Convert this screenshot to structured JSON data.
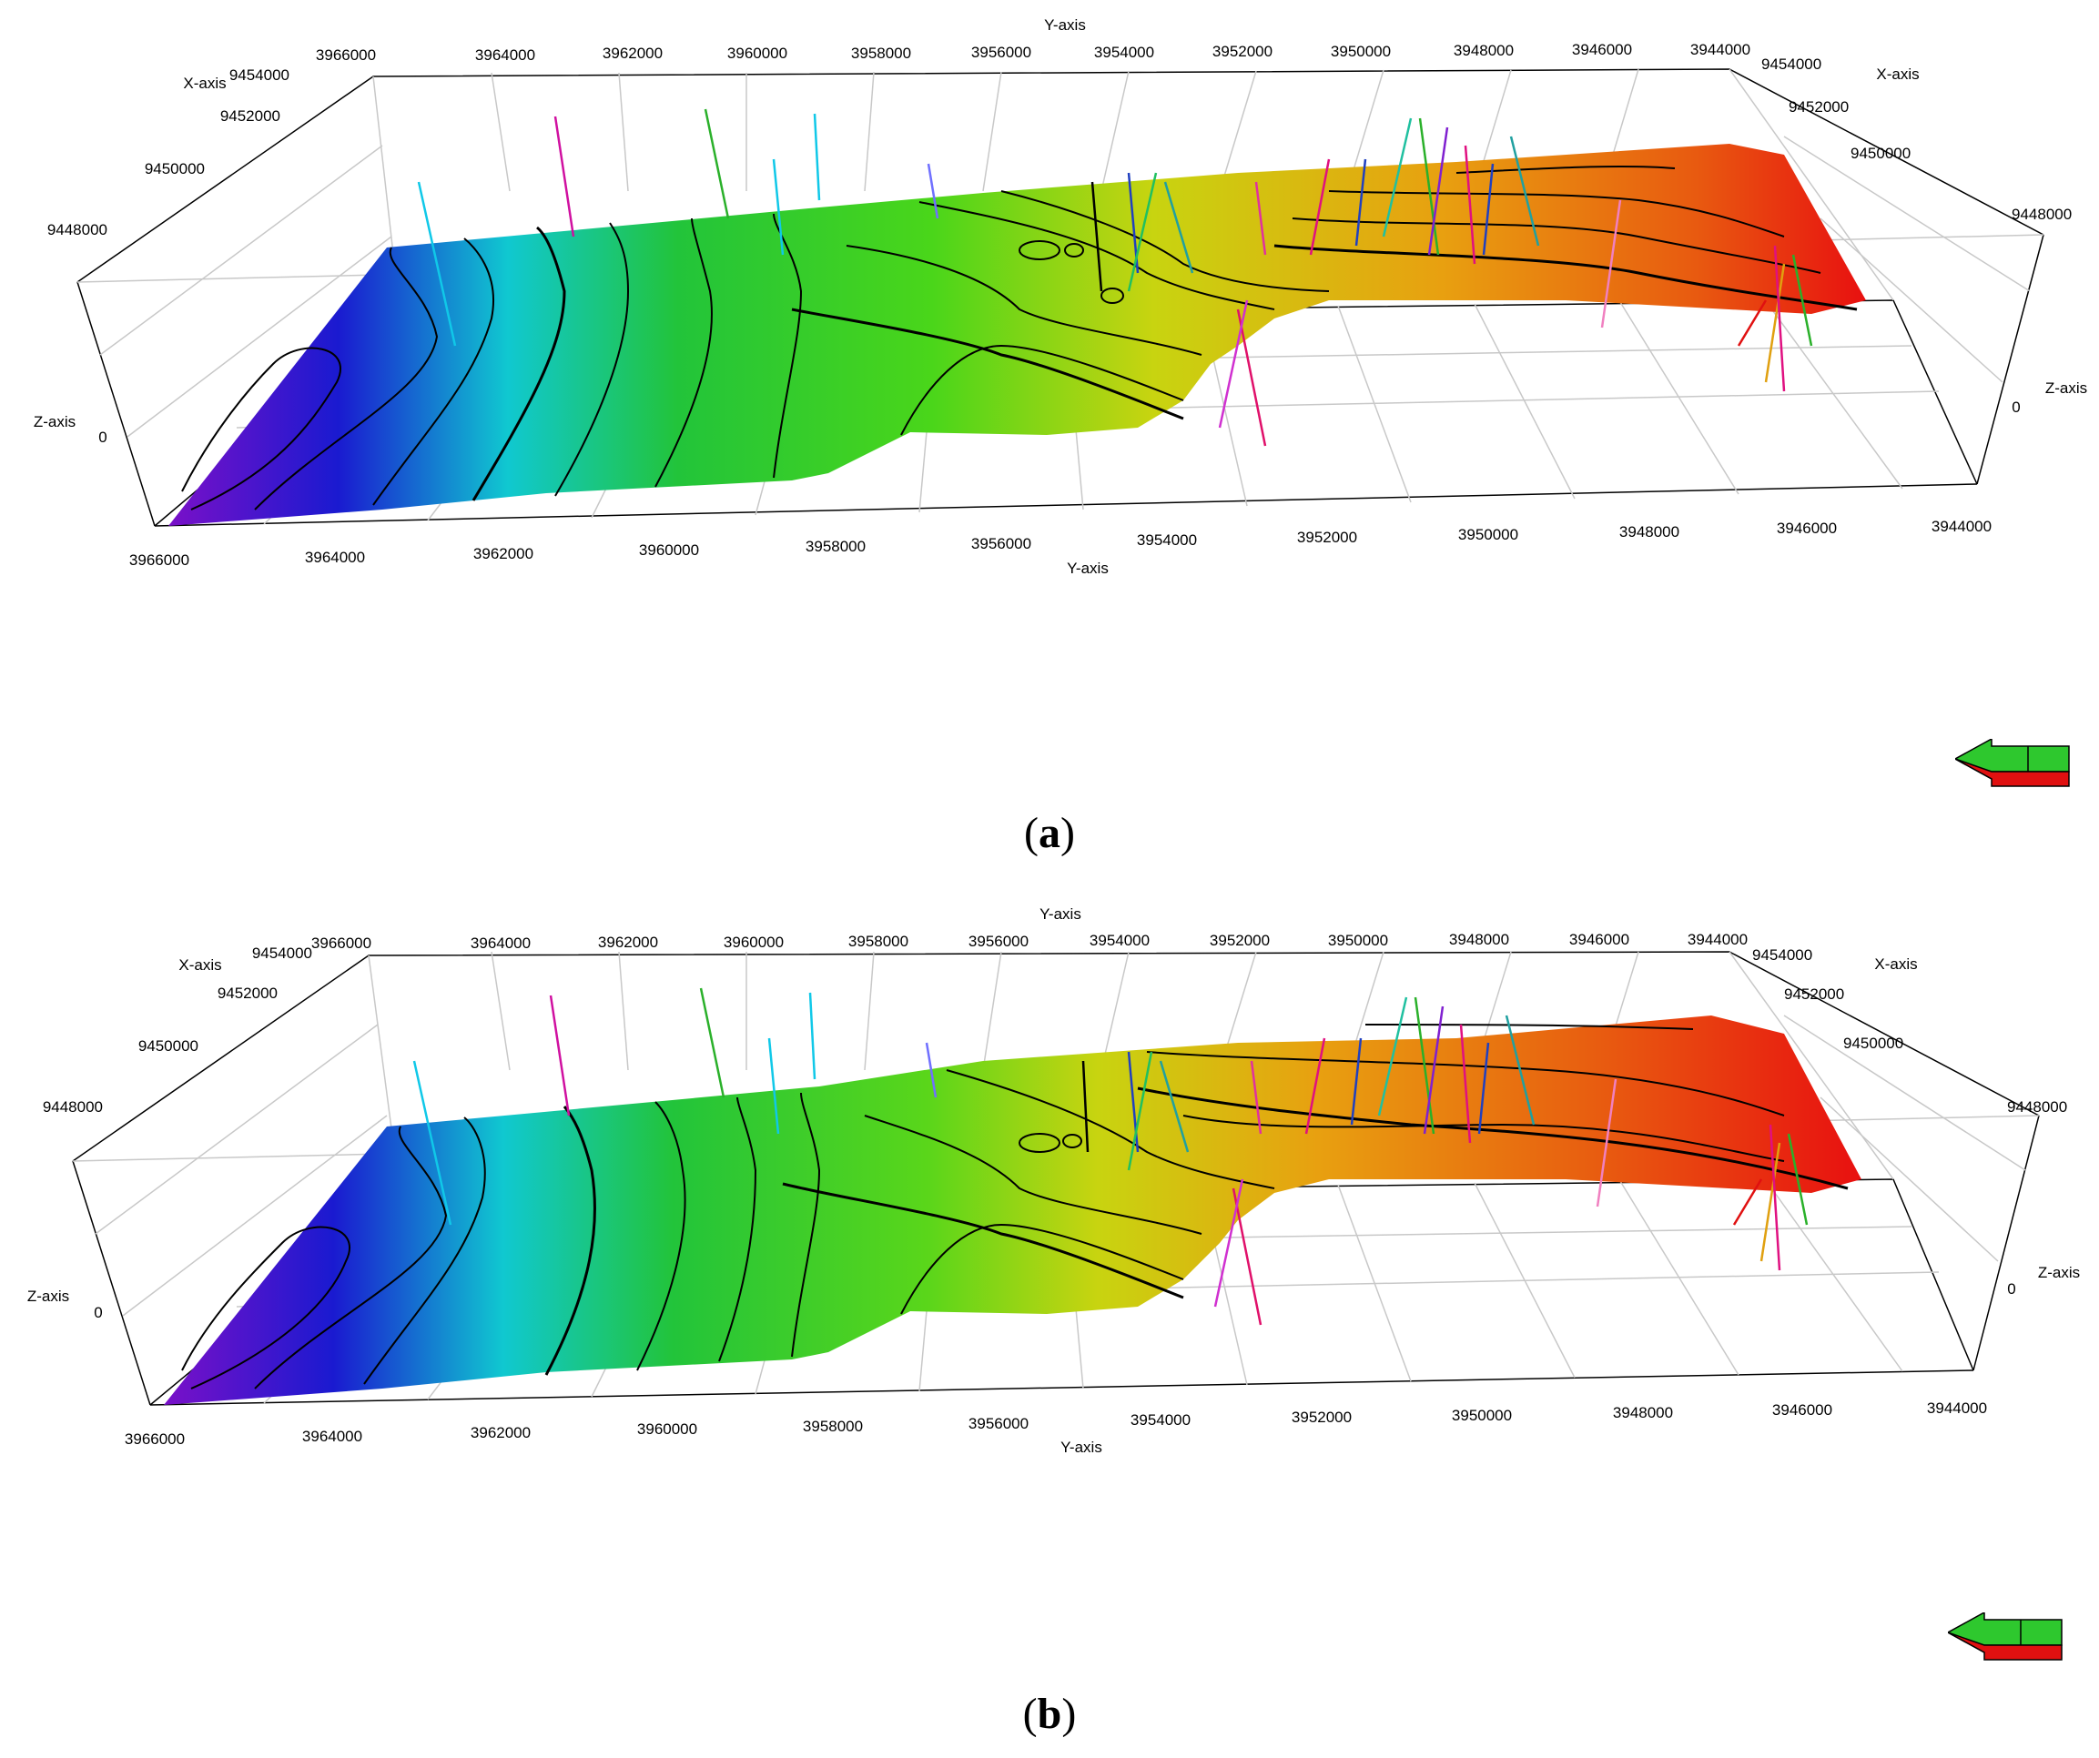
{
  "panels": [
    {
      "id": "a",
      "caption_letter": "a",
      "y_axis_label": "Y-axis",
      "x_axis_label": "X-axis",
      "z_axis_label": "Z-axis",
      "top_y_ticks": [
        "3966000",
        "3964000",
        "3962000",
        "3960000",
        "3958000",
        "3956000",
        "3954000",
        "3952000",
        "3950000",
        "3948000",
        "3946000",
        "3944000"
      ],
      "bottom_y_ticks": [
        "3966000",
        "3964000",
        "3962000",
        "3960000",
        "3958000",
        "3956000",
        "3954000",
        "3952000",
        "3950000",
        "3948000",
        "3946000",
        "3944000"
      ],
      "left_x_ticks": [
        "9454000",
        "9452000",
        "9450000",
        "9448000"
      ],
      "right_x_ticks": [
        "9454000",
        "9452000",
        "9450000",
        "9448000"
      ],
      "z_tick": "0"
    },
    {
      "id": "b",
      "caption_letter": "b",
      "y_axis_label": "Y-axis",
      "x_axis_label": "X-axis",
      "z_axis_label": "Z-axis",
      "top_y_ticks": [
        "3966000",
        "3964000",
        "3962000",
        "3960000",
        "3958000",
        "3956000",
        "3954000",
        "3952000",
        "3950000",
        "3948000",
        "3946000",
        "3944000"
      ],
      "bottom_y_ticks": [
        "3966000",
        "3964000",
        "3962000",
        "3960000",
        "3958000",
        "3956000",
        "3954000",
        "3952000",
        "3950000",
        "3948000",
        "3946000",
        "3944000"
      ],
      "left_x_ticks": [
        "9454000",
        "9452000",
        "9450000",
        "9448000"
      ],
      "right_x_ticks": [
        "9454000",
        "9452000",
        "9450000",
        "9448000"
      ],
      "z_tick": "0"
    }
  ],
  "colors": {
    "surface_gradient": [
      "#7a10c8",
      "#1a1ad0",
      "#10c8d0",
      "#22c43a",
      "#4ad61a",
      "#c8d410",
      "#e8a010",
      "#e85a10",
      "#e81010"
    ],
    "grid": "#c8c8c8",
    "frame": "#000000",
    "contour": "#000000",
    "arrow_green": "#2ec82e",
    "arrow_red": "#e01010"
  },
  "icons": {
    "navigation": "view-direction-arrow-icon"
  }
}
